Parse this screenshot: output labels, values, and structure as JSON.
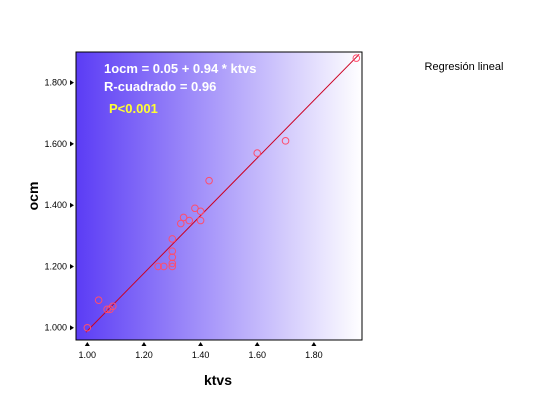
{
  "chart_data": {
    "type": "scatter",
    "xlabel": "ktvs",
    "ylabel": "ocm",
    "xlim": [
      0.96,
      1.97
    ],
    "ylim": [
      0.96,
      1.9
    ],
    "x_ticks": [
      "1.00",
      "1.20",
      "1.40",
      "1.60",
      "1.80"
    ],
    "y_ticks": [
      "1.000",
      "1.200",
      "1.400",
      "1.600",
      "1.800"
    ],
    "legend_label": "Regresión lineal",
    "legend_placement": "top-right outside plot",
    "annotations": {
      "equation": "1ocm = 0.05 + 0.94 * ktvs",
      "r_squared": "R-cuadrado = 0.96",
      "p_value": "P<0.001"
    },
    "regression": {
      "intercept": 0.05,
      "slope": 0.94,
      "x_range": [
        0.995,
        1.96
      ]
    },
    "points": [
      {
        "x": 1.0,
        "y": 1.0
      },
      {
        "x": 1.04,
        "y": 1.09
      },
      {
        "x": 1.07,
        "y": 1.06
      },
      {
        "x": 1.08,
        "y": 1.06
      },
      {
        "x": 1.09,
        "y": 1.07
      },
      {
        "x": 1.25,
        "y": 1.2
      },
      {
        "x": 1.27,
        "y": 1.2
      },
      {
        "x": 1.3,
        "y": 1.2
      },
      {
        "x": 1.3,
        "y": 1.21
      },
      {
        "x": 1.3,
        "y": 1.23
      },
      {
        "x": 1.3,
        "y": 1.25
      },
      {
        "x": 1.3,
        "y": 1.29
      },
      {
        "x": 1.33,
        "y": 1.34
      },
      {
        "x": 1.34,
        "y": 1.36
      },
      {
        "x": 1.36,
        "y": 1.35
      },
      {
        "x": 1.38,
        "y": 1.39
      },
      {
        "x": 1.4,
        "y": 1.38
      },
      {
        "x": 1.4,
        "y": 1.35
      },
      {
        "x": 1.43,
        "y": 1.48
      },
      {
        "x": 1.6,
        "y": 1.57
      },
      {
        "x": 1.7,
        "y": 1.61
      },
      {
        "x": 1.95,
        "y": 1.88
      }
    ],
    "colors": {
      "gradient_left": "#5b3cf5",
      "gradient_right": "#ffffff",
      "points": "#ff4d6d",
      "line": "#cc0022",
      "annotation_text": "#ffffff",
      "p_value_text": "#ffff33"
    }
  }
}
